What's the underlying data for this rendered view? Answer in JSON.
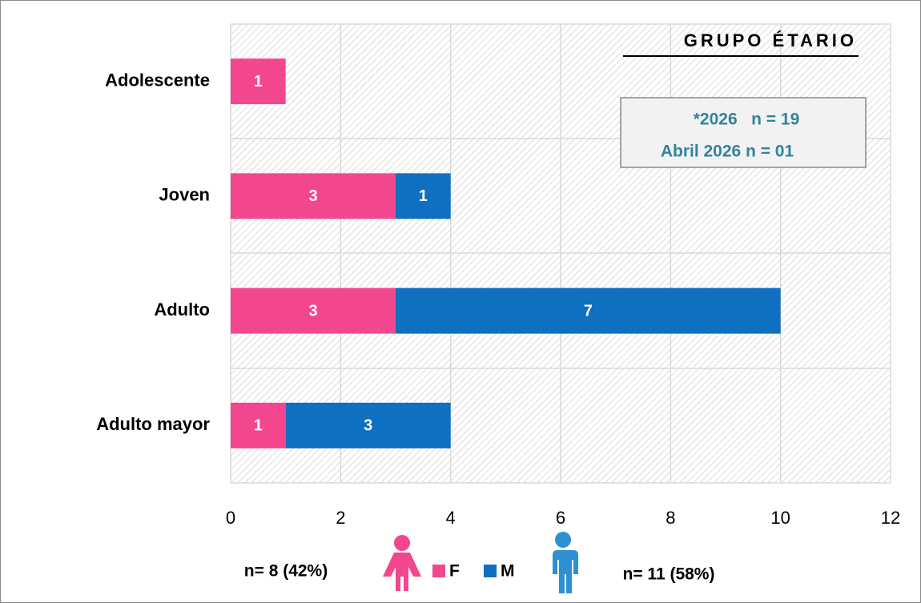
{
  "chart_data": {
    "type": "bar",
    "orientation": "horizontal",
    "stacked": true,
    "title": "GRUPO ÉTARIO",
    "categories": [
      "Adolescente",
      "Joven",
      "Adulto",
      "Adulto mayor"
    ],
    "series": [
      {
        "name": "F",
        "color": "#f2478f",
        "values": [
          1,
          3,
          3,
          1
        ]
      },
      {
        "name": "M",
        "color": "#0f6fc0",
        "values": [
          null,
          1,
          7,
          3
        ]
      }
    ],
    "xlim": [
      0,
      12
    ],
    "xticks": [
      0,
      2,
      4,
      6,
      8,
      10,
      12
    ],
    "grid": true,
    "legend": "bottom",
    "annotations": [
      "*2026   n = 19",
      "Abril 2026 n = 01",
      "n= 8 (42%)",
      "n= 11 (58%)"
    ]
  }
}
